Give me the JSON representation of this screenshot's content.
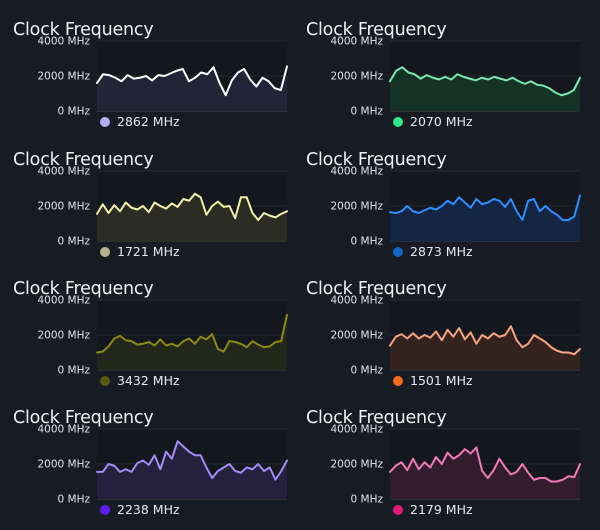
{
  "chart_data": [
    {
      "type": "area",
      "title": "Clock Frequency",
      "yticks": [
        "4000 MHz",
        "2000 MHz",
        "0 MHz"
      ],
      "ylim": [
        0,
        4000
      ],
      "legend_value": "2862 MHz",
      "color": "#ffffff",
      "dot_color": "#b4b0f0",
      "fill": "#222538",
      "series": [
        {
          "values": [
            1600,
            2100,
            2050,
            1900,
            1700,
            2050,
            1850,
            1900,
            2000,
            1750,
            2050,
            2000,
            2150,
            2300,
            2400,
            1700,
            1900,
            2200,
            2100,
            2500,
            1600,
            900,
            1750,
            2200,
            2400,
            1800,
            1400,
            1900,
            1700,
            1300,
            1200,
            2550
          ]
        }
      ]
    },
    {
      "type": "area",
      "title": "Clock Frequency",
      "yticks": [
        "4000 MHz",
        "2000 MHz",
        "0 MHz"
      ],
      "ylim": [
        0,
        4000
      ],
      "legend_value": "2070 MHz",
      "color": "#7be8b0",
      "dot_color": "#2ee88a",
      "fill": "#143226",
      "series": [
        {
          "values": [
            1700,
            2300,
            2500,
            2200,
            2100,
            1850,
            2050,
            1900,
            1800,
            1950,
            1800,
            2100,
            1950,
            1850,
            1750,
            1900,
            1800,
            1950,
            1850,
            1750,
            1900,
            1700,
            1550,
            1700,
            1500,
            1450,
            1300,
            1050,
            900,
            1000,
            1200,
            1900
          ]
        }
      ]
    },
    {
      "type": "area",
      "title": "Clock Frequency",
      "yticks": [
        "4000 MHz",
        "2000 MHz",
        "0 MHz"
      ],
      "ylim": [
        0,
        4000
      ],
      "legend_value": "1721 MHz",
      "color": "#f2f0a8",
      "dot_color": "#b8b48a",
      "fill": "#2b2d24",
      "series": [
        {
          "values": [
            1550,
            2100,
            1600,
            2050,
            1700,
            2200,
            1900,
            1800,
            2000,
            1650,
            2200,
            2000,
            1850,
            2150,
            1950,
            2400,
            2300,
            2700,
            2500,
            1500,
            2000,
            2250,
            1950,
            2000,
            1300,
            2500,
            2500,
            1600,
            1200,
            1600,
            1450,
            1350,
            1550,
            1700
          ]
        }
      ]
    },
    {
      "type": "area",
      "title": "Clock Frequency",
      "yticks": [
        "4000 MHz",
        "2000 MHz",
        "0 MHz"
      ],
      "ylim": [
        0,
        4000
      ],
      "legend_value": "2873 MHz",
      "color": "#2f8eff",
      "dot_color": "#1663c6",
      "fill": "#142544",
      "series": [
        {
          "values": [
            1650,
            1600,
            1700,
            2000,
            1700,
            1600,
            1750,
            1900,
            1800,
            2000,
            2300,
            2100,
            2500,
            2200,
            1900,
            2400,
            2100,
            2200,
            2400,
            2300,
            1950,
            2400,
            1700,
            1200,
            2300,
            2400,
            1700,
            2000,
            1700,
            1500,
            1200,
            1200,
            1400,
            2600
          ]
        }
      ]
    },
    {
      "type": "area",
      "title": "Clock Frequency",
      "yticks": [
        "4000 MHz",
        "2000 MHz",
        "0 MHz"
      ],
      "ylim": [
        0,
        4000
      ],
      "legend_value": "3432 MHz",
      "color": "#8a8a14",
      "dot_color": "#5a5a12",
      "fill": "#23261a",
      "series": [
        {
          "values": [
            1000,
            1050,
            1350,
            1800,
            1950,
            1700,
            1650,
            1450,
            1500,
            1600,
            1400,
            1750,
            1400,
            1500,
            1350,
            1650,
            1800,
            1500,
            1900,
            1750,
            2050,
            1200,
            1050,
            1650,
            1600,
            1500,
            1300,
            1650,
            1450,
            1300,
            1350,
            1600,
            1650,
            3150
          ]
        }
      ]
    },
    {
      "type": "area",
      "title": "Clock Frequency",
      "yticks": [
        "4000 MHz",
        "2000 MHz",
        "0 MHz"
      ],
      "ylim": [
        0,
        4000
      ],
      "legend_value": "1501 MHz",
      "color": "#f7a47f",
      "dot_color": "#f26a1b",
      "fill": "#33221e",
      "series": [
        {
          "values": [
            1400,
            1900,
            2050,
            1800,
            2100,
            1800,
            2000,
            1850,
            2200,
            1700,
            2300,
            1900,
            2400,
            1750,
            2150,
            1500,
            2000,
            1800,
            2100,
            1900,
            2000,
            2500,
            1700,
            1300,
            1500,
            2000,
            1800,
            1600,
            1300,
            1100,
            1000,
            1000,
            900,
            1200
          ]
        }
      ]
    },
    {
      "type": "area",
      "title": "Clock Frequency",
      "yticks": [
        "4000 MHz",
        "2000 MHz",
        "0 MHz"
      ],
      "ylim": [
        0,
        4000
      ],
      "legend_value": "2238 MHz",
      "color": "#a58bf6",
      "dot_color": "#5b1cf0",
      "fill": "#24203d",
      "series": [
        {
          "values": [
            1550,
            1550,
            2000,
            1900,
            1550,
            1700,
            1550,
            2050,
            2200,
            1950,
            2500,
            1700,
            2700,
            2300,
            3300,
            3000,
            2700,
            2500,
            2500,
            1800,
            1200,
            1600,
            1800,
            2000,
            1600,
            1500,
            1800,
            1700,
            2000,
            1600,
            1800,
            1100,
            1600,
            2200
          ]
        }
      ]
    },
    {
      "type": "area",
      "title": "Clock Frequency",
      "yticks": [
        "4000 MHz",
        "2000 MHz",
        "0 MHz"
      ],
      "ylim": [
        0,
        4000
      ],
      "legend_value": "2179 MHz",
      "color": "#f07ab8",
      "dot_color": "#e31a7a",
      "fill": "#331d2c",
      "series": [
        {
          "values": [
            1550,
            1900,
            2100,
            1650,
            2300,
            1700,
            2100,
            1800,
            2400,
            2000,
            2650,
            2300,
            2500,
            2850,
            2600,
            2950,
            1600,
            1200,
            1650,
            2300,
            1800,
            1400,
            1550,
            2000,
            1500,
            1100,
            1200,
            1200,
            1000,
            1000,
            1100,
            1300,
            1250,
            2000
          ]
        }
      ]
    }
  ]
}
